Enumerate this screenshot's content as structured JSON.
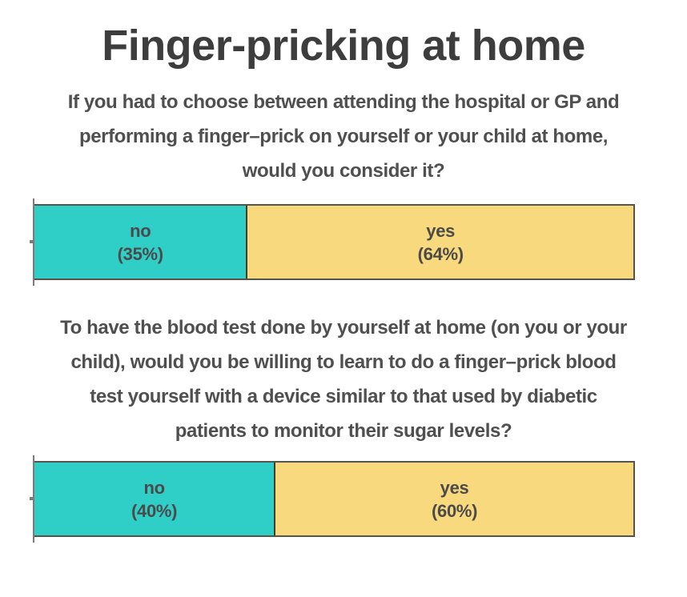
{
  "title": "Finger-pricking at home",
  "colors": {
    "background": "#ffffff",
    "title_text": "#3d3d3d",
    "question_text": "#4f4f4f",
    "bar_label_text": "#4a4a4a",
    "no_fill": "#2fcec6",
    "yes_fill": "#f9d97d",
    "bar_border": "#55534b",
    "segment_divider": "#1b3a36",
    "axis_line": "#7b7b7b"
  },
  "chart_data": [
    {
      "type": "bar",
      "orientation": "horizontal_stacked",
      "question": "If you had to choose between attending the hospital or GP and performing a finger–prick on yourself or your child at home, would you consider it?",
      "question_lines": [
        "If you had to choose between attending the hospital or GP and",
        "performing a finger–prick on yourself or your child at home,",
        "would you consider it?"
      ],
      "categories": [
        "no",
        "yes"
      ],
      "values": [
        35,
        64
      ],
      "segments": [
        {
          "label": "no",
          "pct_label": "(35%)",
          "value": 35,
          "color": "#2fcec6"
        },
        {
          "label": "yes",
          "pct_label": "(64%)",
          "value": 64,
          "color": "#f9d97d"
        }
      ]
    },
    {
      "type": "bar",
      "orientation": "horizontal_stacked",
      "question": "To have the blood test done by yourself at home (on you or your child), would you be willing to learn to do a finger–prick blood test yourself with a device similar to that used by diabetic patients to monitor their sugar levels?",
      "question_lines": [
        "To have the blood test done by yourself at home (on you or your",
        "child), would you be willing to learn to do a finger–prick blood",
        "test yourself with a device similar to that used by diabetic",
        "patients to monitor their sugar levels?"
      ],
      "categories": [
        "no",
        "yes"
      ],
      "values": [
        40,
        60
      ],
      "segments": [
        {
          "label": "no",
          "pct_label": "(40%)",
          "value": 40,
          "color": "#2fcec6"
        },
        {
          "label": "yes",
          "pct_label": "(60%)",
          "value": 60,
          "color": "#f9d97d"
        }
      ]
    }
  ]
}
